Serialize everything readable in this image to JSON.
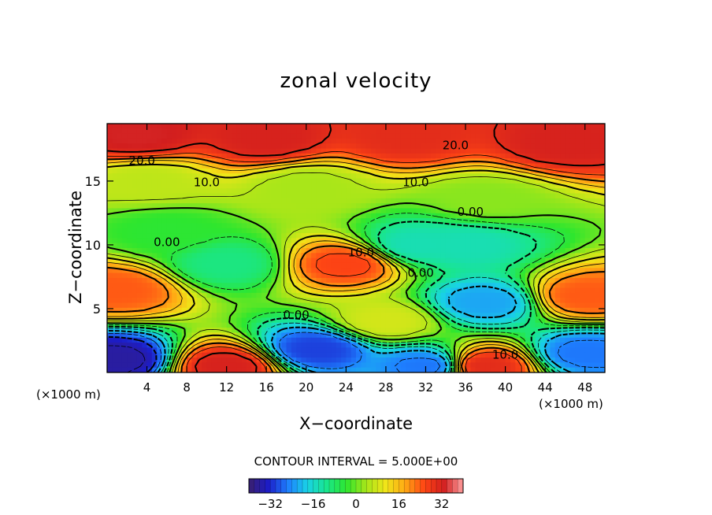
{
  "chart_data": {
    "type": "heatmap",
    "title": "zonal velocity",
    "xlabel": "X−coordinate",
    "ylabel": "Z−coordinate",
    "x_unit_left": "(×1000 m)",
    "x_unit_right": "(×1000 m)",
    "xlim": [
      0,
      50
    ],
    "ylim": [
      0,
      19.5
    ],
    "x_ticks": [
      4,
      8,
      12,
      16,
      20,
      24,
      28,
      32,
      36,
      40,
      44,
      48
    ],
    "y_ticks": [
      5,
      10,
      15
    ],
    "contour_interval_text": "CONTOUR INTERVAL = 5.000E+00",
    "contour_interval": 5.0,
    "contour_labels": [
      {
        "text": "20.0",
        "x": 3.5,
        "y": 16.6
      },
      {
        "text": "20.0",
        "x": 35.0,
        "y": 17.8
      },
      {
        "text": "10.0",
        "x": 10.0,
        "y": 14.9
      },
      {
        "text": "10.0",
        "x": 31.0,
        "y": 14.9
      },
      {
        "text": "10.0",
        "x": 25.5,
        "y": 9.4
      },
      {
        "text": "10.0",
        "x": 40.0,
        "y": 1.4
      },
      {
        "text": "0.00",
        "x": 36.5,
        "y": 12.6
      },
      {
        "text": "0.00",
        "x": 6.0,
        "y": 10.2
      },
      {
        "text": "0.00",
        "x": 19.0,
        "y": 4.5
      },
      {
        "text": "0.00",
        "x": 31.5,
        "y": 7.8
      }
    ],
    "colorbar": {
      "range": [
        -40,
        40
      ],
      "tick_values": [
        -32,
        -16,
        0,
        16,
        32
      ],
      "tick_labels": [
        "−32",
        "−16",
        "0",
        "16",
        "32"
      ]
    },
    "features": [
      {
        "u": 33,
        "x": 3,
        "y": 18.5
      },
      {
        "u": 32,
        "x": 16,
        "y": 18.3
      },
      {
        "u": 30,
        "x": 30,
        "y": 18.5
      },
      {
        "u": 32,
        "x": 46,
        "y": 18.0
      },
      {
        "u": 6,
        "x": 4,
        "y": 15.0
      },
      {
        "u": 4,
        "x": 20,
        "y": 14.5
      },
      {
        "u": 2,
        "x": 38,
        "y": 13.5
      },
      {
        "u": 24,
        "x": 1,
        "y": 6.5
      },
      {
        "u": 26,
        "x": 24,
        "y": 8.5
      },
      {
        "u": 24,
        "x": 48,
        "y": 6.0
      },
      {
        "u": -10,
        "x": 12,
        "y": 8.5
      },
      {
        "u": -4,
        "x": 6,
        "y": 11.0
      },
      {
        "u": -22,
        "x": 38,
        "y": 5.5
      },
      {
        "u": -14,
        "x": 36,
        "y": 10.0
      },
      {
        "u": -14,
        "x": 31,
        "y": 10.0
      },
      {
        "u": -36,
        "x": 1,
        "y": 1.0
      },
      {
        "u": -30,
        "x": 21,
        "y": 1.8
      },
      {
        "u": -26,
        "x": 32,
        "y": 0.5
      },
      {
        "u": -26,
        "x": 48,
        "y": 1.5
      },
      {
        "u": 32,
        "x": 12,
        "y": 0.5
      },
      {
        "u": 30,
        "x": 38,
        "y": 0.5
      },
      {
        "u": 8,
        "x": 28,
        "y": 4.0
      }
    ]
  },
  "colors": {
    "colormap": [
      "#3a1f6e",
      "#1c1cc8",
      "#1e7fff",
      "#19d2e6",
      "#19e68c",
      "#2ee62e",
      "#a5e619",
      "#f0e619",
      "#ffaa14",
      "#ff4614",
      "#d21e1e",
      "#ffa0a0"
    ]
  }
}
